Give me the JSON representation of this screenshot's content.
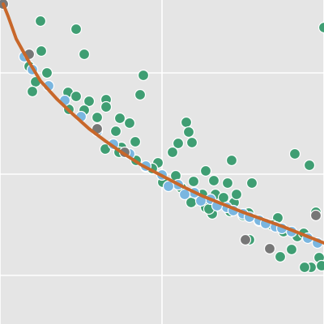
{
  "chart_data": {
    "type": "scatter",
    "title": "",
    "xlabel": "",
    "ylabel": "",
    "xlim": [
      0,
      400
    ],
    "ylim": [
      0,
      400
    ],
    "x_ticks": [
      0,
      200,
      400
    ],
    "y_ticks": [
      60,
      185,
      310
    ],
    "grid": true,
    "colors": {
      "background": "#e5e5e5",
      "grid": "#ffffff",
      "green": "#3f9e73",
      "blue": "#7ab6e0",
      "gray": "#777777",
      "curve": "#c8672a"
    },
    "curve": {
      "name": "",
      "points": [
        [
          4,
          395
        ],
        [
          10,
          380
        ],
        [
          20,
          352
        ],
        [
          35,
          325
        ],
        [
          50,
          300
        ],
        [
          70,
          278
        ],
        [
          90,
          259
        ],
        [
          110,
          241
        ],
        [
          130,
          226
        ],
        [
          150,
          212
        ],
        [
          175,
          196
        ],
        [
          200,
          183
        ],
        [
          225,
          170
        ],
        [
          250,
          158
        ],
        [
          275,
          148
        ],
        [
          300,
          138
        ],
        [
          325,
          129
        ],
        [
          350,
          120
        ],
        [
          375,
          110
        ],
        [
          400,
          100
        ]
      ]
    },
    "series": [
      {
        "name": "",
        "color": "green",
        "points": [
          [
            50,
            374
          ],
          [
            94,
            364
          ],
          [
            51,
            337
          ],
          [
            104,
            333
          ],
          [
            36,
            318
          ],
          [
            44,
            299
          ],
          [
            177,
            307
          ],
          [
            40,
            287
          ],
          [
            58,
            310
          ],
          [
            84,
            286
          ],
          [
            94,
            281
          ],
          [
            110,
            275
          ],
          [
            131,
            277
          ],
          [
            85,
            265
          ],
          [
            104,
            264
          ],
          [
            131,
            268
          ],
          [
            173,
            283
          ],
          [
            120,
            255
          ],
          [
            148,
            254
          ],
          [
            160,
            248
          ],
          [
            143,
            238
          ],
          [
            230,
            249
          ],
          [
            233,
            237
          ],
          [
            220,
            223
          ],
          [
            237,
            224
          ],
          [
            150,
            218
          ],
          [
            167,
            225
          ],
          [
            213,
            212
          ],
          [
            130,
            216
          ],
          [
            195,
            199
          ],
          [
            180,
            194
          ],
          [
            254,
            189
          ],
          [
            286,
            202
          ],
          [
            311,
            174
          ],
          [
            217,
            183
          ],
          [
            239,
            176
          ],
          [
            264,
            177
          ],
          [
            281,
            174
          ],
          [
            250,
            160
          ],
          [
            266,
            160
          ],
          [
            276,
            156
          ],
          [
            289,
            150
          ],
          [
            307,
            137
          ],
          [
            320,
            127
          ],
          [
            343,
            131
          ],
          [
            364,
            210
          ],
          [
            382,
            196
          ],
          [
            390,
            138
          ],
          [
            350,
            114
          ],
          [
            367,
            108
          ],
          [
            375,
            112
          ],
          [
            394,
            82
          ],
          [
            400,
            366
          ],
          [
            262,
            136
          ],
          [
            284,
            139
          ],
          [
            201,
            175
          ],
          [
            224,
            168
          ],
          [
            240,
            152
          ],
          [
            254,
            144
          ],
          [
            300,
            134
          ],
          [
            336,
            122
          ],
          [
            360,
            92
          ],
          [
            384,
            70
          ],
          [
            397,
            72
          ],
          [
            376,
            70
          ],
          [
            346,
            83
          ],
          [
            308,
            104
          ],
          [
            258,
            142
          ],
          [
            236,
            150
          ],
          [
            292,
            160
          ],
          [
            188,
            192
          ],
          [
            168,
            202
          ],
          [
            147,
            212
          ]
        ]
      },
      {
        "name": "",
        "color": "blue",
        "points": [
          [
            30,
            330
          ],
          [
            40,
            314
          ],
          [
            60,
            294
          ],
          [
            80,
            276
          ],
          [
            100,
            256
          ],
          [
            120,
            238
          ],
          [
            140,
            222
          ],
          [
            160,
            210
          ],
          [
            180,
            195
          ],
          [
            200,
            184
          ],
          [
            220,
            172
          ],
          [
            240,
            162
          ],
          [
            260,
            154
          ],
          [
            280,
            144
          ],
          [
            300,
            136
          ],
          [
            320,
            128
          ],
          [
            340,
            120
          ],
          [
            360,
            114
          ],
          [
            380,
            106
          ],
          [
            392,
            100
          ],
          [
            208,
            170
          ],
          [
            228,
            160
          ],
          [
            248,
            152
          ],
          [
            268,
            146
          ],
          [
            288,
            140
          ],
          [
            308,
            132
          ],
          [
            328,
            124
          ],
          [
            348,
            118
          ]
        ]
      },
      {
        "name": "",
        "color": "gray",
        "points": [
          [
            4,
            395
          ],
          [
            36,
            333
          ],
          [
            120,
            241
          ],
          [
            154,
            212
          ],
          [
            303,
            104
          ],
          [
            333,
            93
          ],
          [
            390,
            134
          ]
        ]
      }
    ]
  }
}
